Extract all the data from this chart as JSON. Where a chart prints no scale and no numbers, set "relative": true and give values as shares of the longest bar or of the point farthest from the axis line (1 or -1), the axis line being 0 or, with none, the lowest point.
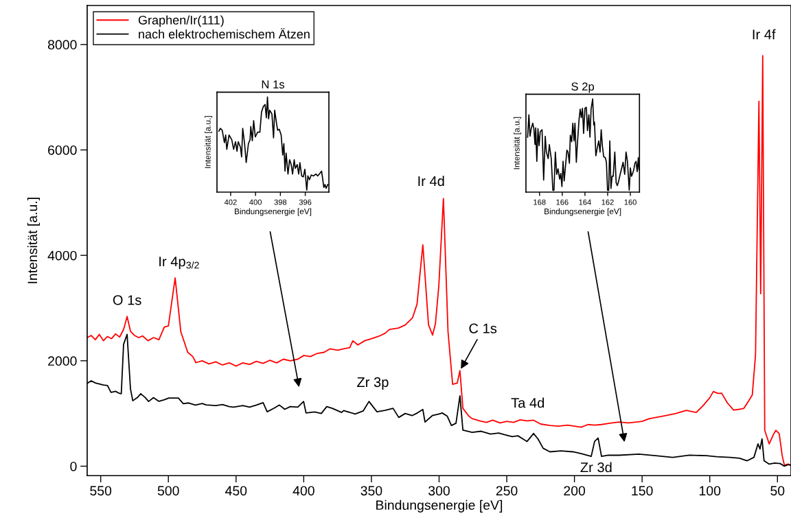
{
  "chart_data": [
    {
      "type": "line",
      "xlabel": "Bindungsenergie [eV]",
      "ylabel": "Intensität [a.u.]",
      "xlim": [
        560,
        40
      ],
      "ylim": [
        -180,
        8740
      ],
      "xticks": [
        550,
        500,
        450,
        400,
        350,
        300,
        250,
        200,
        150,
        100,
        50
      ],
      "yticks": [
        0,
        2000,
        4000,
        6000,
        8000
      ],
      "grid": false,
      "legend": "top left",
      "marker": "none",
      "line_style": "solid",
      "annotations": [
        {
          "text": "O 1s",
          "x": 530.5,
          "y": 2840
        },
        {
          "text": "Ir 4p$_{3/2}$",
          "x": 495,
          "y": 3570
        },
        {
          "text": "Ir 4d",
          "x": 296.8,
          "y": 5078
        },
        {
          "text": "Ir 4f",
          "x": 60.9,
          "y": 7788
        },
        {
          "text": "C 1s",
          "x": 284.6,
          "y": 1814
        },
        {
          "text": "Zr 3p",
          "x": 351.8,
          "y": 1228
        },
        {
          "text": "Ta 4d",
          "x": 230.2,
          "y": 872
        },
        {
          "text": "Zr 3d",
          "x": 182.5,
          "y": 534
        }
      ],
      "series": [
        {
          "name": "Graphen/Ir(111)",
          "color": "#ff0000",
          "x": [
            560,
            557,
            554,
            551,
            548,
            545,
            542,
            539,
            536,
            533,
            530.5,
            528,
            525,
            522,
            519,
            515,
            511,
            507,
            503,
            500,
            495,
            490.8,
            485.7,
            482,
            479.7,
            475,
            470,
            465,
            460,
            455,
            450,
            445,
            440,
            435,
            430,
            425,
            420,
            415,
            410,
            404.4,
            400,
            395,
            390,
            385,
            380.6,
            375,
            370.5,
            366,
            363.7,
            360,
            355,
            350,
            345,
            340,
            336.6,
            330,
            325,
            319.7,
            316.3,
            312,
            307.8,
            304.8,
            302.7,
            300.2,
            296.8,
            293.4,
            290,
            286.6,
            284.6,
            282.4,
            278,
            275.6,
            270,
            265,
            260.4,
            255,
            250,
            245,
            240,
            235,
            230.2,
            225,
            218.1,
            212,
            205,
            200,
            195,
            190,
            185.1,
            180,
            175,
            167.2,
            160,
            150,
            145,
            132.4,
            125,
            117.4,
            110,
            104.9,
            100,
            97.4,
            94,
            91.2,
            87,
            82.4,
            78,
            74.9,
            71,
            68.6,
            66.2,
            63.7,
            62.4,
            60.9,
            59.4,
            56.1,
            53,
            51.2,
            48.7,
            46.5,
            44.9,
            42,
            40
          ],
          "values": [
            2440,
            2480,
            2400,
            2500,
            2380,
            2460,
            2420,
            2510,
            2450,
            2600,
            2840,
            2560,
            2480,
            2440,
            2470,
            2380,
            2440,
            2400,
            2640,
            2660,
            3570,
            2550,
            2160,
            2080,
            1965,
            2000,
            1940,
            1980,
            1920,
            1960,
            1900,
            1960,
            1930,
            1990,
            1950,
            2010,
            1960,
            2030,
            2000,
            2030,
            2100,
            2080,
            2140,
            2160,
            2226,
            2200,
            2226,
            2250,
            2380,
            2300,
            2380,
            2420,
            2460,
            2520,
            2595,
            2620,
            2680,
            2812,
            3073,
            4200,
            2682,
            2487,
            2703,
            3420,
            5078,
            2552,
            1553,
            1575,
            1814,
            1098,
            950,
            902,
            860,
            830,
            872,
            820,
            850,
            830,
            880,
            860,
            872,
            800,
            772,
            760,
            780,
            760,
            740,
            790,
            780,
            790,
            810,
            837,
            820,
            850,
            900,
            960,
            1000,
            1060,
            1020,
            1150,
            1300,
            1416,
            1380,
            1384,
            1200,
            1064,
            1080,
            1095,
            1250,
            1352,
            2120,
            6923,
            3273,
            7788,
            680,
            423,
            600,
            680,
            616,
            200,
            20,
            40,
            10
          ]
        },
        {
          "name": "nach elektrochemischem Ätzen",
          "color": "#000000",
          "x": [
            560,
            557,
            554,
            551,
            548,
            545,
            542.4,
            539,
            536,
            534.8,
            533.1,
            530.5,
            528,
            526.3,
            523,
            520.4,
            517,
            514.6,
            511,
            507,
            503,
            499.7,
            492.6,
            489,
            485,
            480,
            475,
            472.1,
            465,
            460,
            455,
            451.8,
            445,
            440,
            435,
            430,
            427,
            422,
            418,
            414,
            410,
            404.4,
            400.1,
            398.3,
            392,
            387,
            383,
            378.9,
            372,
            370.5,
            362,
            356,
            351.8,
            345.9,
            340,
            334,
            329.8,
            325,
            320,
            316,
            312,
            310.4,
            305,
            300,
            297.7,
            294,
            290.9,
            287.5,
            284.6,
            282.4,
            275.6,
            268.9,
            262,
            256,
            251.9,
            246,
            241.8,
            235,
            230.2,
            227,
            223.1,
            218.1,
            210,
            201.1,
            195,
            187.6,
            185.1,
            182.5,
            180,
            175,
            167.2,
            152.4,
            140,
            127.4,
            115,
            102.4,
            95,
            84.9,
            78,
            72.4,
            67.4,
            64.4,
            62.9,
            61.4,
            59.9,
            56.1,
            52,
            48,
            44.9,
            42,
            40
          ],
          "values": [
            1570,
            1620,
            1580,
            1560,
            1540,
            1530,
            1401,
            1420,
            1380,
            1375,
            2312,
            2500,
            1466,
            1241,
            1300,
            1375,
            1300,
            1228,
            1300,
            1230,
            1260,
            1293,
            1293,
            1185,
            1200,
            1160,
            1190,
            1163,
            1150,
            1170,
            1130,
            1120,
            1150,
            1120,
            1160,
            1206,
            1033,
            1100,
            1160,
            1080,
            1130,
            1120,
            1228,
            1010,
            1030,
            1000,
            1130,
            1098,
            1020,
            1055,
            990,
            1050,
            1228,
            1033,
            1060,
            1098,
            925,
            1000,
            960,
            1010,
            1076,
            837,
            960,
            990,
            1010,
            950,
            772,
            815,
            1336,
            685,
            642,
            663,
            610,
            630,
            599,
            560,
            577,
            469,
            620,
            520,
            339,
            273,
            290,
            273,
            240,
            186,
            469,
            534,
            186,
            210,
            208,
            230,
            200,
            167,
            210,
            199,
            180,
            167,
            150,
            103,
            167,
            423,
            327,
            518,
            103,
            39,
            60,
            50,
            0,
            30,
            20
          ]
        }
      ]
    },
    {
      "type": "line",
      "title": "N 1s",
      "xlabel": "Bindungsenergie [eV]",
      "ylabel": "Intensität [a.u.]",
      "relative": true,
      "xlim": [
        403.1,
        394.1
      ],
      "xticks": [
        402,
        400,
        398,
        396
      ],
      "grid": false,
      "marker": "none",
      "line_style": "solid",
      "series": [
        {
          "color": "#000000",
          "x": [
            402.95,
            402.83,
            402.68,
            402.5,
            402.4,
            402.31,
            402.13,
            401.91,
            401.76,
            401.61,
            401.49,
            401.39,
            401.21,
            401.12,
            401.03,
            400.88,
            400.75,
            400.57,
            400.44,
            400.38,
            400.26,
            400.15,
            400.02,
            399.83,
            399.65,
            399.52,
            399.37,
            399.23,
            399.13,
            399.04,
            398.95,
            398.86,
            398.68,
            398.55,
            398.46,
            398.31,
            398.22,
            398.09,
            397.94,
            397.81,
            397.72,
            397.63,
            397.54,
            397.39,
            397.26,
            397.13,
            397.02,
            396.89,
            396.8,
            396.65,
            396.53,
            396.43,
            396.29,
            396.16,
            396.03,
            395.88,
            395.79,
            395.66,
            395.52,
            395.33,
            395.15,
            395.0,
            394.87,
            394.69,
            394.6,
            394.51,
            394.41,
            394.32,
            394.19
          ],
          "values": [
            0.64,
            0.67,
            0.65,
            0.52,
            0.6,
            0.45,
            0.6,
            0.55,
            0.45,
            0.53,
            0.43,
            0.53,
            0.47,
            0.37,
            0.67,
            0.51,
            0.31,
            0.51,
            0.55,
            0.69,
            0.54,
            0.75,
            0.58,
            0.63,
            0.63,
            0.84,
            0.9,
            0.92,
            0.78,
            1.0,
            0.77,
            0.86,
            0.82,
            0.57,
            0.86,
            0.72,
            0.65,
            0.66,
            0.6,
            0.39,
            0.51,
            0.22,
            0.41,
            0.19,
            0.34,
            0.29,
            0.19,
            0.34,
            0.25,
            0.29,
            0.19,
            0.31,
            0.17,
            0.16,
            0.24,
            0.02,
            0.17,
            0.13,
            0.18,
            0.17,
            0.19,
            0.17,
            0.19,
            0.22,
            0.14,
            0.05,
            0.08,
            0.04,
            0.08
          ]
        }
      ]
    },
    {
      "type": "line",
      "title": "S 2p",
      "xlabel": "Bindungsenergie [eV]",
      "ylabel": "Intensität [a.u.]",
      "relative": true,
      "xlim": [
        169.2,
        159.2
      ],
      "xticks": [
        168,
        166,
        164,
        162,
        160
      ],
      "grid": false,
      "marker": "none",
      "line_style": "solid",
      "series": [
        {
          "color": "#000000",
          "x": [
            169.05,
            168.94,
            168.84,
            168.74,
            168.6,
            168.5,
            168.4,
            168.34,
            168.24,
            168.14,
            168.04,
            167.94,
            167.78,
            167.64,
            167.5,
            167.4,
            167.24,
            167.14,
            166.97,
            166.83,
            166.73,
            166.61,
            166.49,
            166.37,
            166.23,
            166.13,
            166.03,
            165.93,
            165.83,
            165.73,
            165.59,
            165.49,
            165.37,
            165.29,
            165.17,
            165.07,
            164.96,
            164.88,
            164.76,
            164.66,
            164.52,
            164.42,
            164.32,
            164.22,
            164.12,
            164.0,
            163.88,
            163.78,
            163.66,
            163.56,
            163.46,
            163.32,
            163.22,
            163.16,
            163.04,
            162.91,
            162.79,
            162.67,
            162.57,
            162.47,
            162.35,
            162.21,
            162.11,
            162.01,
            161.91,
            161.81,
            161.71,
            161.61,
            161.51,
            161.37,
            161.25,
            161.15,
            161.05,
            160.9,
            160.76,
            160.64,
            160.5,
            160.38,
            160.26,
            160.16,
            160.1,
            160.0,
            159.9,
            159.8,
            159.7,
            159.6,
            159.5,
            159.4,
            159.3,
            159.24
          ],
          "values": [
            0.59,
            0.83,
            0.6,
            0.68,
            0.74,
            0.68,
            0.51,
            0.69,
            0.33,
            0.68,
            0.5,
            0.65,
            0.67,
            0.13,
            0.6,
            0.43,
            0.36,
            0.51,
            0.36,
            0.02,
            0.02,
            0.43,
            0.19,
            0.25,
            0.14,
            0.2,
            0.06,
            0.33,
            0.12,
            0.26,
            0.45,
            0.43,
            0.31,
            0.61,
            0.54,
            0.74,
            0.55,
            0.74,
            0.32,
            0.53,
            0.78,
            0.89,
            0.8,
            0.9,
            0.63,
            0.9,
            0.91,
            0.66,
            0.83,
            0.59,
            0.89,
            1.0,
            0.72,
            0.75,
            0.39,
            0.48,
            0.55,
            0.43,
            0.67,
            0.5,
            0.38,
            0.37,
            0.32,
            0.02,
            0.02,
            0.55,
            0.04,
            0.17,
            0.17,
            0.43,
            0.1,
            0.07,
            0.11,
            0.19,
            0.26,
            0.32,
            0.19,
            0.43,
            0.33,
            0.14,
            0.02,
            0.26,
            0.17,
            0.2,
            0.24,
            0.31,
            0.33,
            0.22,
            0.37,
            0.24
          ]
        }
      ]
    }
  ]
}
